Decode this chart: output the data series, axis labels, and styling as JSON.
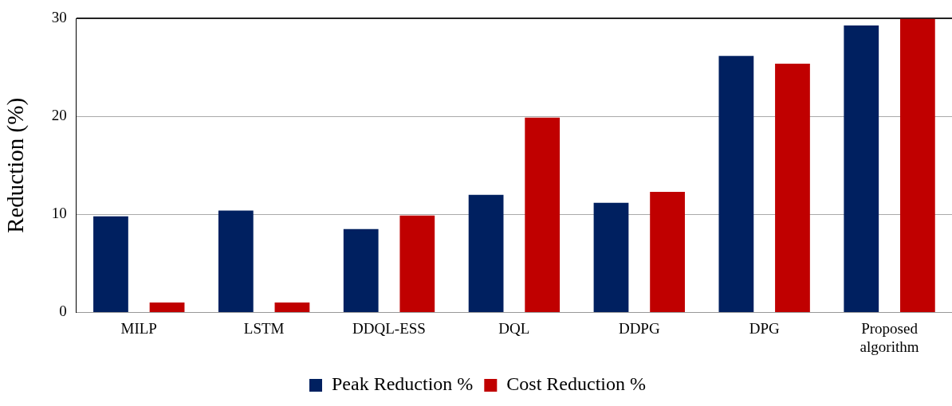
{
  "chart_data": {
    "type": "bar",
    "ylabel": "Reduction (%)",
    "categories": [
      "MILP",
      "LSTM",
      "DDQL-ESS",
      "DQL",
      "DDPG",
      "DPG",
      "Proposed algorithm"
    ],
    "series": [
      {
        "name": "Peak Reduction %",
        "color": "#002060",
        "values": [
          9.8,
          10.4,
          8.5,
          12.0,
          11.2,
          26.2,
          29.3
        ]
      },
      {
        "name": "Cost Reduction %",
        "color": "#c00000",
        "values": [
          1.0,
          1.0,
          9.9,
          19.9,
          12.3,
          25.4,
          30.0
        ]
      }
    ],
    "ylim": [
      0,
      30
    ],
    "yticks": [
      0,
      10,
      20,
      30
    ],
    "grid": "y",
    "legend": "bottom"
  }
}
